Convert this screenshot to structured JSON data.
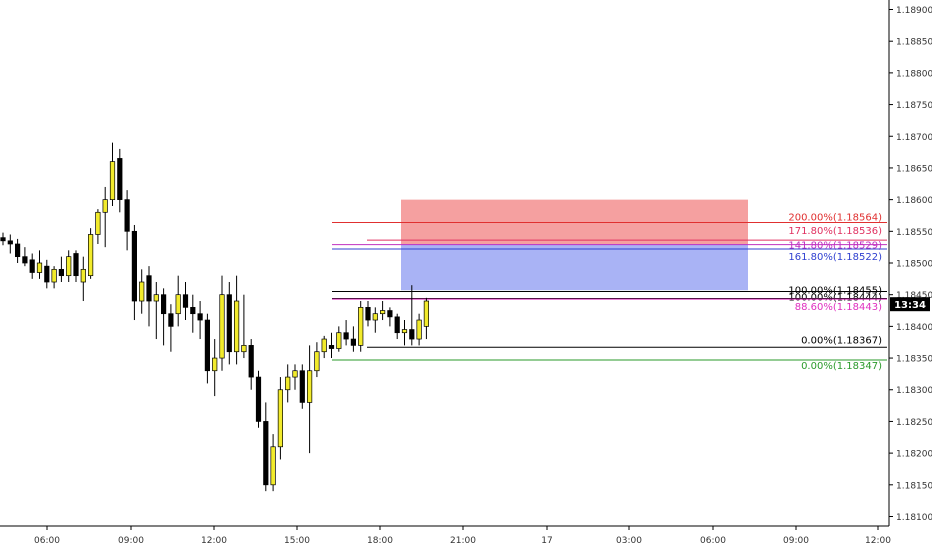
{
  "chart_data": {
    "type": "candlestick",
    "timeframe_note": "",
    "x_tick_labels": [
      "06:00",
      "09:00",
      "12:00",
      "15:00",
      "18:00",
      "21:00",
      "17",
      "03:00",
      "06:00",
      "09:00",
      "12:00"
    ],
    "y_tick_labels": [
      "1.18900",
      "1.18850",
      "1.18800",
      "1.18750",
      "1.18700",
      "1.18650",
      "1.18600",
      "1.18550",
      "1.18500",
      "1.18450",
      "1.18400",
      "1.18350",
      "1.18300",
      "1.18250",
      "1.18200",
      "1.18150",
      "1.18100"
    ],
    "y_range": [
      1.18085,
      1.18915
    ],
    "current_price": 1.18435,
    "current_price_label": "13:34",
    "colors": {
      "bull": "#f2eb2c",
      "bear": "#000000",
      "wick": "#000000",
      "stop_zone": "#f5a0a0",
      "target_zone": "#a9b3f5",
      "axis_line": "#000000",
      "tick_text": "#333333"
    },
    "candles": [
      {
        "o": 1.1854,
        "h": 1.18548,
        "l": 1.18528,
        "c": 1.18535
      },
      {
        "o": 1.18535,
        "h": 1.18545,
        "l": 1.18515,
        "c": 1.1853
      },
      {
        "o": 1.1853,
        "h": 1.18538,
        "l": 1.185,
        "c": 1.1851
      },
      {
        "o": 1.1851,
        "h": 1.18525,
        "l": 1.18495,
        "c": 1.185
      },
      {
        "o": 1.18505,
        "h": 1.18515,
        "l": 1.18475,
        "c": 1.18485
      },
      {
        "o": 1.18485,
        "h": 1.1852,
        "l": 1.18475,
        "c": 1.185
      },
      {
        "o": 1.18495,
        "h": 1.18505,
        "l": 1.1846,
        "c": 1.1847
      },
      {
        "o": 1.1847,
        "h": 1.18495,
        "l": 1.1846,
        "c": 1.1849
      },
      {
        "o": 1.1849,
        "h": 1.1851,
        "l": 1.1847,
        "c": 1.1848
      },
      {
        "o": 1.1848,
        "h": 1.1852,
        "l": 1.1847,
        "c": 1.1851
      },
      {
        "o": 1.18515,
        "h": 1.1852,
        "l": 1.1847,
        "c": 1.1848
      },
      {
        "o": 1.1847,
        "h": 1.1851,
        "l": 1.1844,
        "c": 1.1849
      },
      {
        "o": 1.1848,
        "h": 1.18555,
        "l": 1.18475,
        "c": 1.18545
      },
      {
        "o": 1.18545,
        "h": 1.18585,
        "l": 1.1853,
        "c": 1.1858
      },
      {
        "o": 1.1858,
        "h": 1.1862,
        "l": 1.18525,
        "c": 1.186
      },
      {
        "o": 1.186,
        "h": 1.1869,
        "l": 1.1859,
        "c": 1.1866
      },
      {
        "o": 1.18665,
        "h": 1.1868,
        "l": 1.1858,
        "c": 1.186
      },
      {
        "o": 1.186,
        "h": 1.18615,
        "l": 1.1852,
        "c": 1.1855
      },
      {
        "o": 1.1855,
        "h": 1.1856,
        "l": 1.1841,
        "c": 1.1844
      },
      {
        "o": 1.1844,
        "h": 1.1849,
        "l": 1.1842,
        "c": 1.1847
      },
      {
        "o": 1.1848,
        "h": 1.18495,
        "l": 1.184,
        "c": 1.1844
      },
      {
        "o": 1.1844,
        "h": 1.1847,
        "l": 1.1838,
        "c": 1.1845
      },
      {
        "o": 1.1845,
        "h": 1.1846,
        "l": 1.1837,
        "c": 1.1842
      },
      {
        "o": 1.1842,
        "h": 1.18435,
        "l": 1.1836,
        "c": 1.184
      },
      {
        "o": 1.1842,
        "h": 1.1848,
        "l": 1.184,
        "c": 1.1845
      },
      {
        "o": 1.1845,
        "h": 1.1847,
        "l": 1.1841,
        "c": 1.1843
      },
      {
        "o": 1.1843,
        "h": 1.1845,
        "l": 1.1839,
        "c": 1.1842
      },
      {
        "o": 1.1842,
        "h": 1.1844,
        "l": 1.1838,
        "c": 1.1841
      },
      {
        "o": 1.1841,
        "h": 1.1842,
        "l": 1.1831,
        "c": 1.1833
      },
      {
        "o": 1.1833,
        "h": 1.1838,
        "l": 1.1829,
        "c": 1.1835
      },
      {
        "o": 1.1835,
        "h": 1.1848,
        "l": 1.1833,
        "c": 1.1845
      },
      {
        "o": 1.1845,
        "h": 1.1847,
        "l": 1.1834,
        "c": 1.1836
      },
      {
        "o": 1.1836,
        "h": 1.1848,
        "l": 1.1834,
        "c": 1.1844
      },
      {
        "o": 1.1836,
        "h": 1.1845,
        "l": 1.1835,
        "c": 1.1837
      },
      {
        "o": 1.1837,
        "h": 1.1838,
        "l": 1.183,
        "c": 1.1832
      },
      {
        "o": 1.1832,
        "h": 1.1833,
        "l": 1.1824,
        "c": 1.1825
      },
      {
        "o": 1.1825,
        "h": 1.1828,
        "l": 1.1814,
        "c": 1.1815
      },
      {
        "o": 1.1815,
        "h": 1.1823,
        "l": 1.1814,
        "c": 1.1821
      },
      {
        "o": 1.1821,
        "h": 1.1832,
        "l": 1.1819,
        "c": 1.183
      },
      {
        "o": 1.183,
        "h": 1.1834,
        "l": 1.1828,
        "c": 1.1832
      },
      {
        "o": 1.1832,
        "h": 1.1834,
        "l": 1.183,
        "c": 1.1833
      },
      {
        "o": 1.1833,
        "h": 1.1834,
        "l": 1.1827,
        "c": 1.1828
      },
      {
        "o": 1.1828,
        "h": 1.1837,
        "l": 1.182,
        "c": 1.1833
      },
      {
        "o": 1.1833,
        "h": 1.18375,
        "l": 1.1832,
        "c": 1.1836
      },
      {
        "o": 1.1836,
        "h": 1.18385,
        "l": 1.1835,
        "c": 1.1838
      },
      {
        "o": 1.1837,
        "h": 1.1839,
        "l": 1.1835,
        "c": 1.18365
      },
      {
        "o": 1.18365,
        "h": 1.184,
        "l": 1.1836,
        "c": 1.1839
      },
      {
        "o": 1.1839,
        "h": 1.1841,
        "l": 1.1837,
        "c": 1.1838
      },
      {
        "o": 1.1838,
        "h": 1.184,
        "l": 1.1836,
        "c": 1.1837
      },
      {
        "o": 1.1837,
        "h": 1.1844,
        "l": 1.1836,
        "c": 1.1843
      },
      {
        "o": 1.1843,
        "h": 1.1844,
        "l": 1.184,
        "c": 1.1841
      },
      {
        "o": 1.1841,
        "h": 1.1843,
        "l": 1.1839,
        "c": 1.1842
      },
      {
        "o": 1.1842,
        "h": 1.1844,
        "l": 1.1841,
        "c": 1.18425
      },
      {
        "o": 1.18425,
        "h": 1.1843,
        "l": 1.184,
        "c": 1.18415
      },
      {
        "o": 1.18415,
        "h": 1.1842,
        "l": 1.1838,
        "c": 1.1839
      },
      {
        "o": 1.1839,
        "h": 1.1841,
        "l": 1.1837,
        "c": 1.18395
      },
      {
        "o": 1.18395,
        "h": 1.18465,
        "l": 1.1837,
        "c": 1.1838
      },
      {
        "o": 1.1838,
        "h": 1.1842,
        "l": 1.1837,
        "c": 1.1841
      },
      {
        "o": 1.184,
        "h": 1.18445,
        "l": 1.1838,
        "c": 1.1844
      }
    ],
    "fib_levels": [
      {
        "label": "200.00%(1.18564)",
        "price": 1.18564,
        "color": "#e03030"
      },
      {
        "label": "171.80%(1.18536)",
        "price": 1.18536,
        "color": "#e03060"
      },
      {
        "label": "141.80%(1.18529)",
        "price": 1.18529,
        "color": "#c030c0"
      },
      {
        "label": "161.80%(1.18522)",
        "price": 1.18522,
        "color": "#3040d0"
      },
      {
        "label": "100.00%(1.18455)",
        "price": 1.18455,
        "color": "#000000"
      },
      {
        "label": "100.00%(1.18444)",
        "price": 1.18444,
        "color": "#000000"
      },
      {
        "label": "88.60%(1.18443)",
        "price": 1.18443,
        "color": "#e030c0"
      },
      {
        "label": "0.00%(1.18367)",
        "price": 1.18367,
        "color": "#000000"
      },
      {
        "label": "0.00%(1.18347)",
        "price": 1.18347,
        "color": "#2a9a2a"
      }
    ],
    "zones": [
      {
        "name": "stop-zone",
        "top": 1.186,
        "bottom": 1.1853
      },
      {
        "name": "target-zone",
        "top": 1.1853,
        "bottom": 1.18457
      }
    ]
  }
}
